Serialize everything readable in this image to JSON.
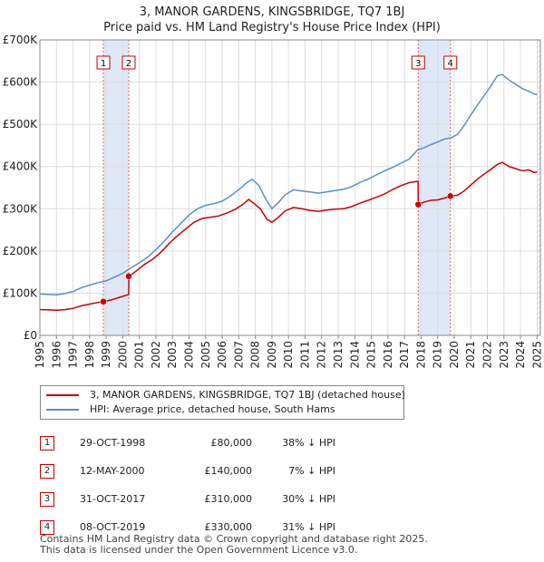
{
  "chart_data": {
    "type": "line",
    "title": "3, MANOR GARDENS, KINGSBRIDGE, TQ7 1BJ",
    "subtitle": "Price paid vs. HM Land Registry's House Price Index (HPI)",
    "xlim": [
      1995,
      2025.2
    ],
    "ylim": [
      0,
      700000
    ],
    "y_ticks": [
      {
        "value": 0,
        "label": "£0"
      },
      {
        "value": 100000,
        "label": "£100K"
      },
      {
        "value": 200000,
        "label": "£200K"
      },
      {
        "value": 300000,
        "label": "£300K"
      },
      {
        "value": 400000,
        "label": "£400K"
      },
      {
        "value": 500000,
        "label": "£500K"
      },
      {
        "value": 600000,
        "label": "£600K"
      },
      {
        "value": 700000,
        "label": "£700K"
      }
    ],
    "x_ticks": [
      "1995",
      "1996",
      "1997",
      "1998",
      "1999",
      "2000",
      "2001",
      "2002",
      "2003",
      "2004",
      "2005",
      "2006",
      "2007",
      "2008",
      "2009",
      "2010",
      "2011",
      "2012",
      "2013",
      "2014",
      "2015",
      "2016",
      "2017",
      "2018",
      "2019",
      "2020",
      "2021",
      "2022",
      "2023",
      "2024",
      "2025"
    ],
    "series": [
      {
        "name": "3, MANOR GARDENS, KINGSBRIDGE, TQ7 1BJ (detached house)",
        "color": "#cc0000",
        "points": [
          [
            1995.0,
            61000
          ],
          [
            1995.5,
            60500
          ],
          [
            1996.0,
            59500
          ],
          [
            1996.5,
            61000
          ],
          [
            1997.0,
            64000
          ],
          [
            1997.5,
            70000
          ],
          [
            1998.0,
            74000
          ],
          [
            1998.5,
            78000
          ],
          [
            1998.83,
            80000
          ],
          [
            1999.3,
            84000
          ],
          [
            1999.8,
            90000
          ],
          [
            2000.36,
            97000
          ],
          [
            2000.37,
            140000
          ],
          [
            2000.8,
            152000
          ],
          [
            2001.3,
            168000
          ],
          [
            2001.8,
            180000
          ],
          [
            2002.3,
            197000
          ],
          [
            2002.8,
            218000
          ],
          [
            2003.3,
            236000
          ],
          [
            2003.8,
            252000
          ],
          [
            2004.3,
            268000
          ],
          [
            2004.8,
            277000
          ],
          [
            2005.3,
            280000
          ],
          [
            2005.8,
            283000
          ],
          [
            2006.3,
            290000
          ],
          [
            2006.8,
            299000
          ],
          [
            2007.3,
            312000
          ],
          [
            2007.6,
            322000
          ],
          [
            2007.9,
            313000
          ],
          [
            2008.3,
            300000
          ],
          [
            2008.7,
            275000
          ],
          [
            2009.0,
            268000
          ],
          [
            2009.4,
            280000
          ],
          [
            2009.8,
            295000
          ],
          [
            2010.3,
            303000
          ],
          [
            2010.8,
            300000
          ],
          [
            2011.3,
            296000
          ],
          [
            2011.8,
            294000
          ],
          [
            2012.3,
            297000
          ],
          [
            2012.8,
            299000
          ],
          [
            2013.3,
            300000
          ],
          [
            2013.8,
            305000
          ],
          [
            2014.3,
            313000
          ],
          [
            2014.8,
            320000
          ],
          [
            2015.3,
            327000
          ],
          [
            2015.8,
            335000
          ],
          [
            2016.3,
            346000
          ],
          [
            2016.8,
            355000
          ],
          [
            2017.3,
            362000
          ],
          [
            2017.82,
            365000
          ],
          [
            2017.83,
            310000
          ],
          [
            2018.2,
            316000
          ],
          [
            2018.6,
            320000
          ],
          [
            2019.0,
            321000
          ],
          [
            2019.4,
            325000
          ],
          [
            2019.77,
            330000
          ],
          [
            2020.2,
            332000
          ],
          [
            2020.6,
            342000
          ],
          [
            2021.0,
            356000
          ],
          [
            2021.4,
            370000
          ],
          [
            2021.8,
            382000
          ],
          [
            2022.2,
            393000
          ],
          [
            2022.6,
            405000
          ],
          [
            2022.9,
            410000
          ],
          [
            2023.3,
            400000
          ],
          [
            2023.7,
            395000
          ],
          [
            2024.1,
            390000
          ],
          [
            2024.5,
            392000
          ],
          [
            2024.8,
            386000
          ],
          [
            2025.0,
            387000
          ]
        ]
      },
      {
        "name": "HPI: Average price, detached house, South Hams",
        "color": "#5b8fc7",
        "points": [
          [
            1995.0,
            98000
          ],
          [
            1995.5,
            97000
          ],
          [
            1996.0,
            96000
          ],
          [
            1996.5,
            99000
          ],
          [
            1997.0,
            104000
          ],
          [
            1997.5,
            113000
          ],
          [
            1998.0,
            119000
          ],
          [
            1998.5,
            125000
          ],
          [
            1999.0,
            129000
          ],
          [
            1999.5,
            138000
          ],
          [
            2000.0,
            147000
          ],
          [
            2000.5,
            160000
          ],
          [
            2001.0,
            172000
          ],
          [
            2001.5,
            185000
          ],
          [
            2002.0,
            203000
          ],
          [
            2002.5,
            223000
          ],
          [
            2003.0,
            245000
          ],
          [
            2003.5,
            265000
          ],
          [
            2004.0,
            285000
          ],
          [
            2004.5,
            300000
          ],
          [
            2005.0,
            308000
          ],
          [
            2005.5,
            312000
          ],
          [
            2006.0,
            318000
          ],
          [
            2006.5,
            330000
          ],
          [
            2007.0,
            345000
          ],
          [
            2007.5,
            362000
          ],
          [
            2007.8,
            370000
          ],
          [
            2008.2,
            356000
          ],
          [
            2008.6,
            325000
          ],
          [
            2009.0,
            300000
          ],
          [
            2009.4,
            315000
          ],
          [
            2009.8,
            333000
          ],
          [
            2010.3,
            345000
          ],
          [
            2010.8,
            342000
          ],
          [
            2011.3,
            340000
          ],
          [
            2011.8,
            337000
          ],
          [
            2012.3,
            340000
          ],
          [
            2012.8,
            343000
          ],
          [
            2013.3,
            346000
          ],
          [
            2013.8,
            352000
          ],
          [
            2014.3,
            362000
          ],
          [
            2014.8,
            370000
          ],
          [
            2015.3,
            380000
          ],
          [
            2015.8,
            390000
          ],
          [
            2016.3,
            398000
          ],
          [
            2016.8,
            408000
          ],
          [
            2017.3,
            418000
          ],
          [
            2017.8,
            440000
          ],
          [
            2018.2,
            445000
          ],
          [
            2018.6,
            452000
          ],
          [
            2019.0,
            458000
          ],
          [
            2019.4,
            465000
          ],
          [
            2019.8,
            468000
          ],
          [
            2020.2,
            476000
          ],
          [
            2020.6,
            497000
          ],
          [
            2021.0,
            522000
          ],
          [
            2021.4,
            545000
          ],
          [
            2021.8,
            568000
          ],
          [
            2022.2,
            590000
          ],
          [
            2022.6,
            615000
          ],
          [
            2022.9,
            618000
          ],
          [
            2023.3,
            605000
          ],
          [
            2023.7,
            595000
          ],
          [
            2024.1,
            585000
          ],
          [
            2024.5,
            578000
          ],
          [
            2024.8,
            572000
          ],
          [
            2025.0,
            570000
          ]
        ]
      }
    ],
    "sales": [
      {
        "id": "1",
        "x": 1998.83,
        "price": 80000,
        "date": "29-OCT-1998",
        "price_label": "£80,000",
        "hpi": "38% ↓ HPI"
      },
      {
        "id": "2",
        "x": 2000.36,
        "price": 140000,
        "date": "12-MAY-2000",
        "price_label": "£140,000",
        "hpi": "7% ↓ HPI"
      },
      {
        "id": "3",
        "x": 2017.83,
        "price": 310000,
        "date": "31-OCT-2017",
        "price_label": "£310,000",
        "hpi": "30% ↓ HPI"
      },
      {
        "id": "4",
        "x": 2019.77,
        "price": 330000,
        "date": "08-OCT-2019",
        "price_label": "£330,000",
        "hpi": "31% ↓ HPI"
      }
    ],
    "shaded_ranges": [
      [
        1998.83,
        2000.36
      ],
      [
        2017.83,
        2019.77
      ]
    ],
    "future_hatch_from": 2025.0
  },
  "legend": {
    "property": "3, MANOR GARDENS, KINGSBRIDGE, TQ7 1BJ (detached house)",
    "hpi": "HPI: Average price, detached house, South Hams"
  },
  "footer": {
    "line1": "Contains HM Land Registry data © Crown copyright and database right 2025.",
    "line2": "This data is licensed under the Open Government Licence v3.0."
  }
}
